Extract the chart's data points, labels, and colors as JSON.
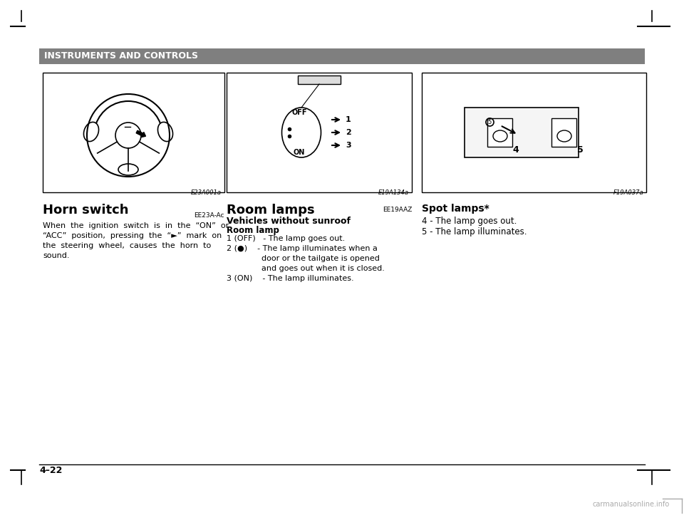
{
  "bg_color": "#ffffff",
  "header_bg": "#7f7f7f",
  "header_text": "INSTRUMENTS AND CONTROLS",
  "header_text_color": "#ffffff",
  "page_number": "4–22",
  "section1_title": "Horn switch",
  "section1_code": "EE23A-Ac",
  "section1_fig": "E23A001a",
  "section1_body": "When  the  ignition  switch  is  in  the  “ON”  or\n“ACC”  position,  pressing  the  “→”  mark  on\nthe  steering  wheel,  causes  the  horn  to\nsound.",
  "section2_title": "Room lamps",
  "section2_code": "EE19AAZ",
  "section2_fig": "E19A134a",
  "section2_sub": "Vehicles without sunroof",
  "section2_sub2": "Room lamp",
  "section2_body_lines": [
    "1 (OFF)   - The lamp goes out.",
    "2 (●)    - The lamp illuminates when a",
    "              door or the tailgate is opened",
    "              and goes out when it is closed.",
    "3 (ON)    - The lamp illuminates."
  ],
  "section3_title": "Spot lamps*",
  "section3_fig": "F19A037a",
  "section3_body_lines": [
    "4 - The lamp goes out.",
    "5 - The lamp illuminates."
  ],
  "watermark": "carmanualsonline.info",
  "line_color": "#000000",
  "box_border_color": "#000000"
}
